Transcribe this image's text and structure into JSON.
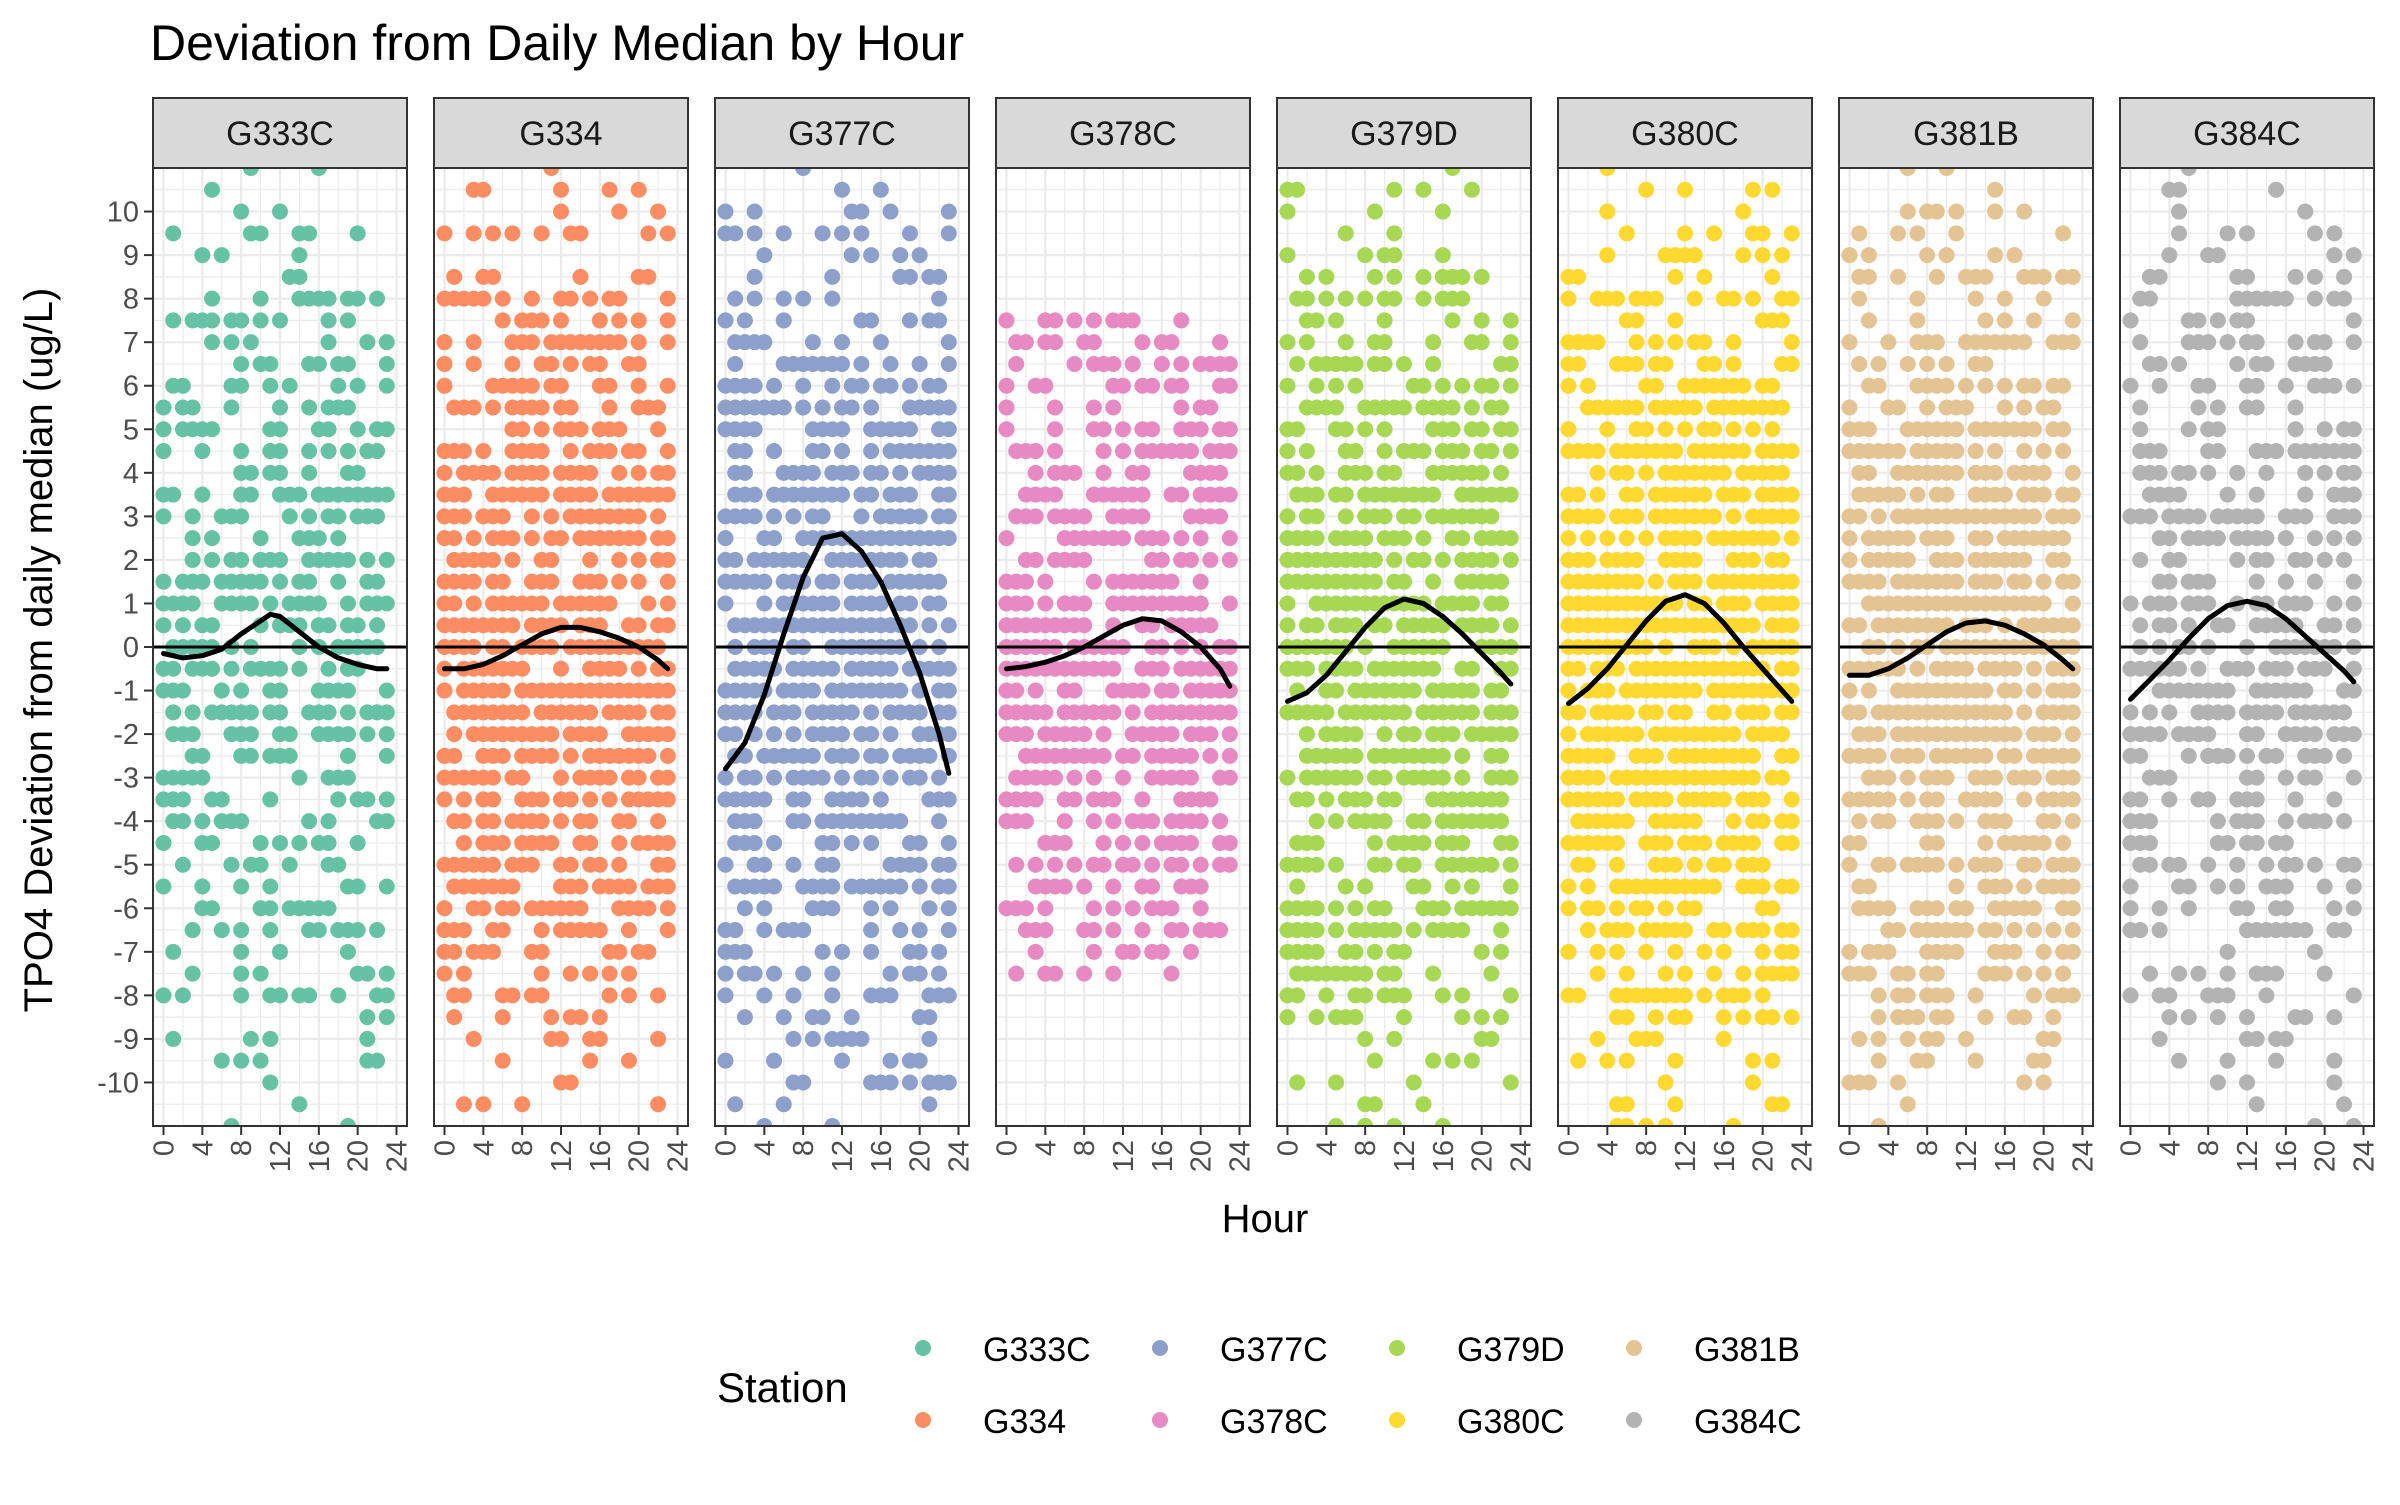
{
  "chart_data": {
    "type": "scatter",
    "title": "Deviation from Daily Median by Hour",
    "xlabel": "Hour",
    "ylabel": "TPO4 Deviation from daily median (ug/L)",
    "xlim": [
      0,
      24
    ],
    "ylim": [
      -11,
      11
    ],
    "x_ticks": [
      "0",
      "4",
      "8",
      "12",
      "16",
      "20",
      "24"
    ],
    "y_ticks": [
      "-10",
      "-9",
      "-8",
      "-7",
      "-6",
      "-5",
      "-4",
      "-3",
      "-2",
      "-1",
      "0",
      "1",
      "2",
      "3",
      "4",
      "5",
      "6",
      "7",
      "8",
      "9",
      "10"
    ],
    "reference_line_y": 0,
    "grid": true,
    "legend": {
      "title": "Station",
      "position": "bottom"
    },
    "panels": [
      {
        "name": "G333C",
        "color": "#66C2A5",
        "smooth_x": [
          0,
          2,
          4,
          6,
          8,
          10,
          11,
          12,
          14,
          16,
          18,
          20,
          22,
          23
        ],
        "smooth_y": [
          -0.15,
          -0.25,
          -0.2,
          -0.05,
          0.3,
          0.6,
          0.75,
          0.7,
          0.35,
          0.0,
          -0.25,
          -0.4,
          -0.5,
          -0.5
        ],
        "density": 0.55,
        "max_abs": 11
      },
      {
        "name": "G334",
        "color": "#FC8D62",
        "smooth_x": [
          0,
          2,
          4,
          6,
          8,
          10,
          12,
          14,
          16,
          18,
          20,
          22,
          23
        ],
        "smooth_y": [
          -0.5,
          -0.5,
          -0.4,
          -0.2,
          0.05,
          0.3,
          0.45,
          0.45,
          0.35,
          0.2,
          0.0,
          -0.3,
          -0.5
        ],
        "density": 0.8,
        "max_abs": 11
      },
      {
        "name": "G377C",
        "color": "#8DA0CB",
        "smooth_x": [
          0,
          2,
          4,
          6,
          8,
          10,
          12,
          14,
          16,
          18,
          20,
          22,
          23
        ],
        "smooth_y": [
          -2.8,
          -2.2,
          -1.1,
          0.3,
          1.6,
          2.5,
          2.6,
          2.2,
          1.5,
          0.5,
          -0.6,
          -2.0,
          -2.9
        ],
        "density": 0.8,
        "max_abs": 11
      },
      {
        "name": "G378C",
        "color": "#E78AC3",
        "smooth_x": [
          0,
          2,
          4,
          6,
          8,
          10,
          12,
          14,
          16,
          18,
          20,
          22,
          23
        ],
        "smooth_y": [
          -0.5,
          -0.45,
          -0.35,
          -0.2,
          0.0,
          0.25,
          0.5,
          0.65,
          0.6,
          0.35,
          0.0,
          -0.5,
          -0.9
        ],
        "density": 0.7,
        "max_abs": 7.5
      },
      {
        "name": "G379D",
        "color": "#A6D854",
        "smooth_x": [
          0,
          2,
          4,
          6,
          8,
          10,
          12,
          14,
          16,
          18,
          20,
          22,
          23
        ],
        "smooth_y": [
          -1.25,
          -1.05,
          -0.65,
          -0.1,
          0.45,
          0.9,
          1.1,
          1.0,
          0.7,
          0.3,
          -0.15,
          -0.6,
          -0.85
        ],
        "density": 0.8,
        "max_abs": 11
      },
      {
        "name": "G380C",
        "color": "#FFD92F",
        "smooth_x": [
          0,
          2,
          4,
          6,
          8,
          10,
          12,
          14,
          16,
          18,
          20,
          22,
          23
        ],
        "smooth_y": [
          -1.3,
          -0.95,
          -0.5,
          0.05,
          0.6,
          1.05,
          1.2,
          1.0,
          0.55,
          0.0,
          -0.5,
          -1.0,
          -1.25
        ],
        "density": 0.9,
        "max_abs": 11
      },
      {
        "name": "G381B",
        "color": "#E5C494",
        "smooth_x": [
          0,
          2,
          4,
          6,
          8,
          10,
          12,
          14,
          16,
          18,
          20,
          22,
          23
        ],
        "smooth_y": [
          -0.65,
          -0.65,
          -0.5,
          -0.25,
          0.05,
          0.35,
          0.55,
          0.6,
          0.5,
          0.3,
          0.05,
          -0.3,
          -0.5
        ],
        "density": 0.8,
        "max_abs": 11
      },
      {
        "name": "G384C",
        "color": "#B3B3B3",
        "smooth_x": [
          0,
          2,
          4,
          6,
          8,
          10,
          12,
          14,
          16,
          18,
          20,
          22,
          23
        ],
        "smooth_y": [
          -1.2,
          -0.75,
          -0.3,
          0.2,
          0.65,
          0.95,
          1.05,
          0.95,
          0.65,
          0.25,
          -0.15,
          -0.55,
          -0.8
        ],
        "density": 0.65,
        "max_abs": 11
      }
    ]
  }
}
